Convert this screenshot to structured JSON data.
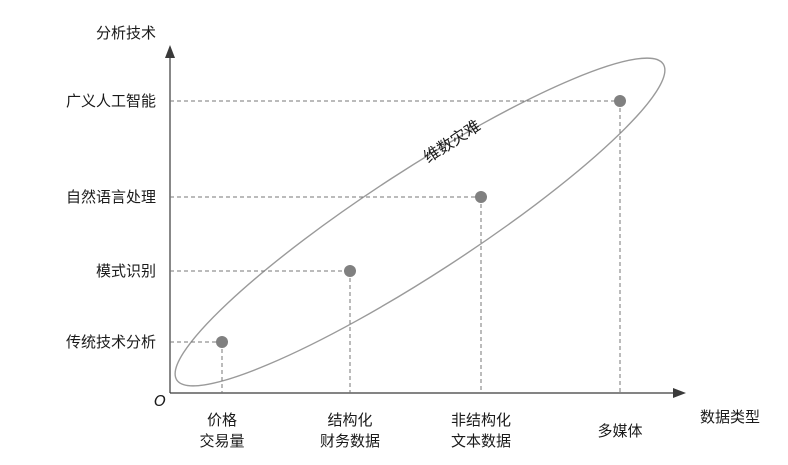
{
  "y_axis_title": "分析技术",
  "x_axis_title": "数据类型",
  "origin_label": "O",
  "band_label": "维数灾难",
  "y_levels": [
    "传统技术分析",
    "模式识别",
    "自然语言处理",
    "广义人工智能"
  ],
  "x_categories": [
    [
      "价格",
      "交易量"
    ],
    [
      "结构化",
      "财务数据"
    ],
    [
      "非结构化",
      "文本数据"
    ],
    [
      "多媒体"
    ]
  ]
}
